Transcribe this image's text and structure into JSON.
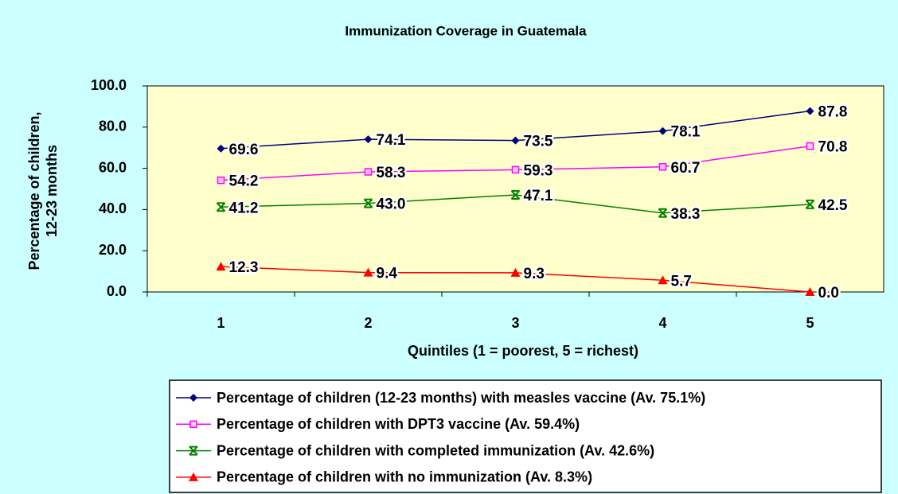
{
  "chart_data": {
    "type": "line",
    "title": "Immunization Coverage in Guatemala",
    "xlabel": "Quintiles (1 = poorest, 5 = richest)",
    "ylabel": [
      "Percentage of children,",
      "12-23 months"
    ],
    "categories": [
      "1",
      "2",
      "3",
      "4",
      "5"
    ],
    "ylim": [
      0,
      100
    ],
    "yticks": [
      {
        "value": 0,
        "label": "0.0"
      },
      {
        "value": 20,
        "label": "20.0"
      },
      {
        "value": 40,
        "label": "40.0"
      },
      {
        "value": 60,
        "label": "60.0"
      },
      {
        "value": 80,
        "label": "80.0"
      },
      {
        "value": 100,
        "label": "100.0"
      }
    ],
    "series": [
      {
        "name": "Percentage of children (12-23 months) with measles vaccine (Av. 75.1%)",
        "color": "#000080",
        "marker": "diamond",
        "values": [
          69.6,
          74.1,
          73.5,
          78.1,
          87.8
        ],
        "value_labels": [
          "69.6",
          "74.1",
          "73.5",
          "78.1",
          "87.8"
        ]
      },
      {
        "name": "Percentage of children with DPT3 vaccine (Av. 59.4%)",
        "color": "#ff00ff",
        "marker": "square",
        "values": [
          54.2,
          58.3,
          59.3,
          60.7,
          70.8
        ],
        "value_labels": [
          "54.2",
          "58.3",
          "59.3",
          "60.7",
          "70.8"
        ]
      },
      {
        "name": "Percentage of children with completed immunization (Av. 42.6%)",
        "color": "#008000",
        "marker": "cross",
        "values": [
          41.2,
          43.0,
          47.1,
          38.3,
          42.5
        ],
        "value_labels": [
          "41.2",
          "43.0",
          "47.1",
          "38.3",
          "42.5"
        ]
      },
      {
        "name": "Percentage of children with no immunization (Av. 8.3%)",
        "color": "#ff0000",
        "marker": "triangle",
        "values": [
          12.3,
          9.4,
          9.3,
          5.7,
          0.0
        ],
        "value_labels": [
          "12.3",
          "9.4",
          "9.3",
          "5.7",
          "0.0"
        ]
      }
    ]
  }
}
